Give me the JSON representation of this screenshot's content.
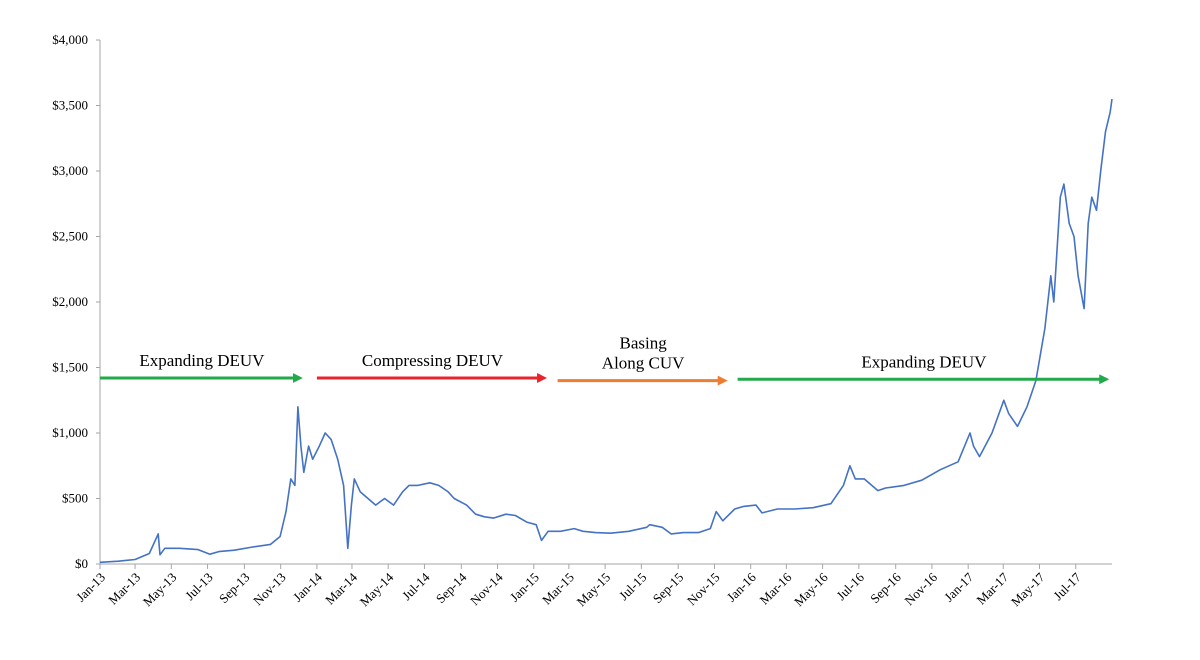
{
  "chart_data": {
    "type": "line",
    "title": "",
    "xlabel": "",
    "ylabel": "",
    "ylim": [
      0,
      4000
    ],
    "y_ticks": [
      0,
      500,
      1000,
      1500,
      2000,
      2500,
      3000,
      3500,
      4000
    ],
    "y_tick_labels": [
      "$0",
      "$500",
      "$1,000",
      "$1,500",
      "$2,000",
      "$2,500",
      "$3,000",
      "$3,500",
      "$4,000"
    ],
    "x_range": [
      "2013-01-01",
      "2017-08-31"
    ],
    "x_ticks": [
      "2013-01-01",
      "2013-03-01",
      "2013-05-01",
      "2013-07-01",
      "2013-09-01",
      "2013-11-01",
      "2014-01-01",
      "2014-03-01",
      "2014-05-01",
      "2014-07-01",
      "2014-09-01",
      "2014-11-01",
      "2015-01-01",
      "2015-03-01",
      "2015-05-01",
      "2015-07-01",
      "2015-09-01",
      "2015-11-01",
      "2016-01-01",
      "2016-03-01",
      "2016-05-01",
      "2016-07-01",
      "2016-09-01",
      "2016-11-01",
      "2017-01-01",
      "2017-03-01",
      "2017-05-01",
      "2017-07-01"
    ],
    "x_tick_labels": [
      "Jan-13",
      "Mar-13",
      "May-13",
      "Jul-13",
      "Sep-13",
      "Nov-13",
      "Jan-14",
      "Mar-14",
      "May-14",
      "Jul-14",
      "Sep-14",
      "Nov-14",
      "Jan-15",
      "Mar-15",
      "May-15",
      "Jul-15",
      "Sep-15",
      "Nov-15",
      "Jan-16",
      "Mar-16",
      "May-16",
      "Jul-16",
      "Sep-16",
      "Nov-16",
      "Jan-17",
      "Mar-17",
      "May-17",
      "Jul-17"
    ],
    "grid": false,
    "series_color": "#4472c4",
    "series": [
      {
        "name": "",
        "x": [
          "2013-01-01",
          "2013-02-01",
          "2013-03-01",
          "2013-03-25",
          "2013-04-09",
          "2013-04-12",
          "2013-04-20",
          "2013-05-15",
          "2013-06-15",
          "2013-07-05",
          "2013-07-20",
          "2013-08-15",
          "2013-09-15",
          "2013-10-15",
          "2013-10-31",
          "2013-11-10",
          "2013-11-18",
          "2013-11-25",
          "2013-11-30",
          "2013-12-05",
          "2013-12-10",
          "2013-12-18",
          "2013-12-25",
          "2014-01-05",
          "2014-01-15",
          "2014-01-25",
          "2014-02-05",
          "2014-02-15",
          "2014-02-22",
          "2014-02-28",
          "2014-03-05",
          "2014-03-15",
          "2014-04-10",
          "2014-04-25",
          "2014-05-10",
          "2014-05-25",
          "2014-06-05",
          "2014-06-20",
          "2014-07-10",
          "2014-07-25",
          "2014-08-10",
          "2014-08-20",
          "2014-09-10",
          "2014-09-25",
          "2014-10-10",
          "2014-10-25",
          "2014-11-15",
          "2014-12-01",
          "2014-12-20",
          "2015-01-05",
          "2015-01-14",
          "2015-01-25",
          "2015-02-15",
          "2015-03-10",
          "2015-03-25",
          "2015-04-15",
          "2015-05-10",
          "2015-06-10",
          "2015-07-10",
          "2015-07-15",
          "2015-08-05",
          "2015-08-20",
          "2015-09-10",
          "2015-10-05",
          "2015-10-25",
          "2015-11-04",
          "2015-11-15",
          "2015-12-05",
          "2015-12-20",
          "2016-01-10",
          "2016-01-20",
          "2016-02-15",
          "2016-03-15",
          "2016-04-15",
          "2016-05-15",
          "2016-06-05",
          "2016-06-16",
          "2016-06-25",
          "2016-07-10",
          "2016-08-02",
          "2016-08-15",
          "2016-09-15",
          "2016-10-15",
          "2016-11-15",
          "2016-12-15",
          "2017-01-04",
          "2017-01-10",
          "2017-01-20",
          "2017-02-10",
          "2017-03-02",
          "2017-03-10",
          "2017-03-25",
          "2017-04-10",
          "2017-04-25",
          "2017-05-10",
          "2017-05-20",
          "2017-05-25",
          "2017-06-05",
          "2017-06-11",
          "2017-06-20",
          "2017-06-28",
          "2017-07-05",
          "2017-07-15",
          "2017-07-22",
          "2017-07-28",
          "2017-08-05",
          "2017-08-12",
          "2017-08-20",
          "2017-08-28",
          "2017-08-31"
        ],
        "y": [
          13,
          21,
          34,
          80,
          230,
          70,
          120,
          120,
          110,
          75,
          95,
          105,
          130,
          150,
          210,
          400,
          650,
          600,
          1200,
          900,
          700,
          900,
          800,
          900,
          1000,
          950,
          800,
          600,
          120,
          450,
          650,
          550,
          450,
          500,
          450,
          550,
          600,
          600,
          620,
          600,
          550,
          500,
          450,
          380,
          360,
          350,
          380,
          370,
          320,
          300,
          180,
          250,
          250,
          270,
          250,
          240,
          235,
          250,
          280,
          300,
          280,
          230,
          240,
          240,
          270,
          400,
          330,
          420,
          440,
          450,
          390,
          420,
          420,
          430,
          460,
          600,
          750,
          650,
          650,
          560,
          580,
          600,
          640,
          720,
          780,
          1000,
          900,
          820,
          1000,
          1250,
          1150,
          1050,
          1200,
          1400,
          1800,
          2200,
          2000,
          2800,
          2900,
          2600,
          2500,
          2200,
          1950,
          2600,
          2800,
          2700,
          3000,
          3300,
          3450,
          3550
        ]
      }
    ],
    "annotations": [
      {
        "text": "Expanding DEUV",
        "color": "#22a94a",
        "x_start": "2013-01-01",
        "x_end": "2013-12-10",
        "y": 1420
      },
      {
        "text": "Compressing DEUV",
        "color": "#e8242c",
        "x_start": "2014-01-01",
        "x_end": "2015-01-25",
        "y": 1420
      },
      {
        "text": "Basing\nAlong CUV",
        "color": "#ed7d31",
        "x_start": "2015-02-10",
        "x_end": "2015-11-25",
        "y": 1400
      },
      {
        "text": "Expanding DEUV",
        "color": "#22a94a",
        "x_start": "2015-12-10",
        "x_end": "2017-08-28",
        "y": 1410
      }
    ]
  }
}
